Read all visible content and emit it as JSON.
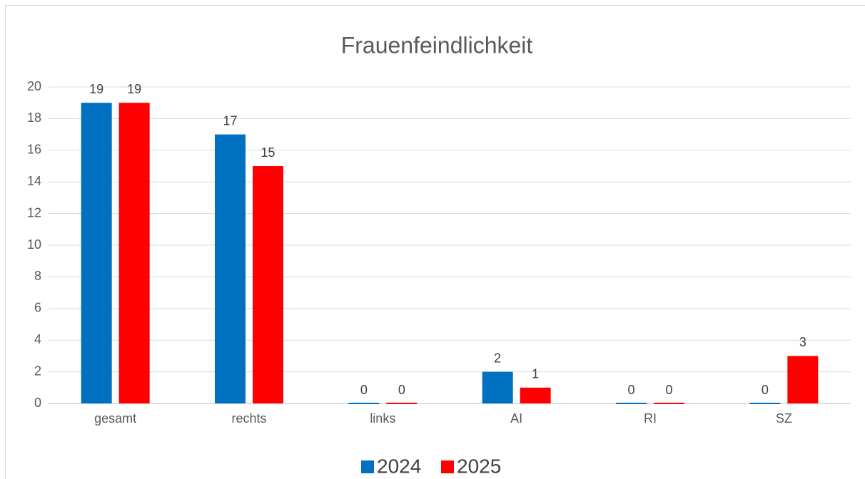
{
  "chart_data": {
    "type": "bar",
    "title": "Frauenfeindlichkeit",
    "categories": [
      "gesamt",
      "rechts",
      "links",
      "AI",
      "RI",
      "SZ"
    ],
    "series": [
      {
        "name": "2024",
        "color": "#0070c0",
        "values": [
          19,
          17,
          0,
          2,
          0,
          0
        ]
      },
      {
        "name": "2025",
        "color": "#ff0000",
        "values": [
          19,
          15,
          0,
          1,
          0,
          3
        ]
      }
    ],
    "ylim": [
      0,
      20
    ],
    "yticks": [
      0,
      2,
      4,
      6,
      8,
      10,
      12,
      14,
      16,
      18,
      20
    ],
    "grid": true,
    "legend": "bottom"
  }
}
